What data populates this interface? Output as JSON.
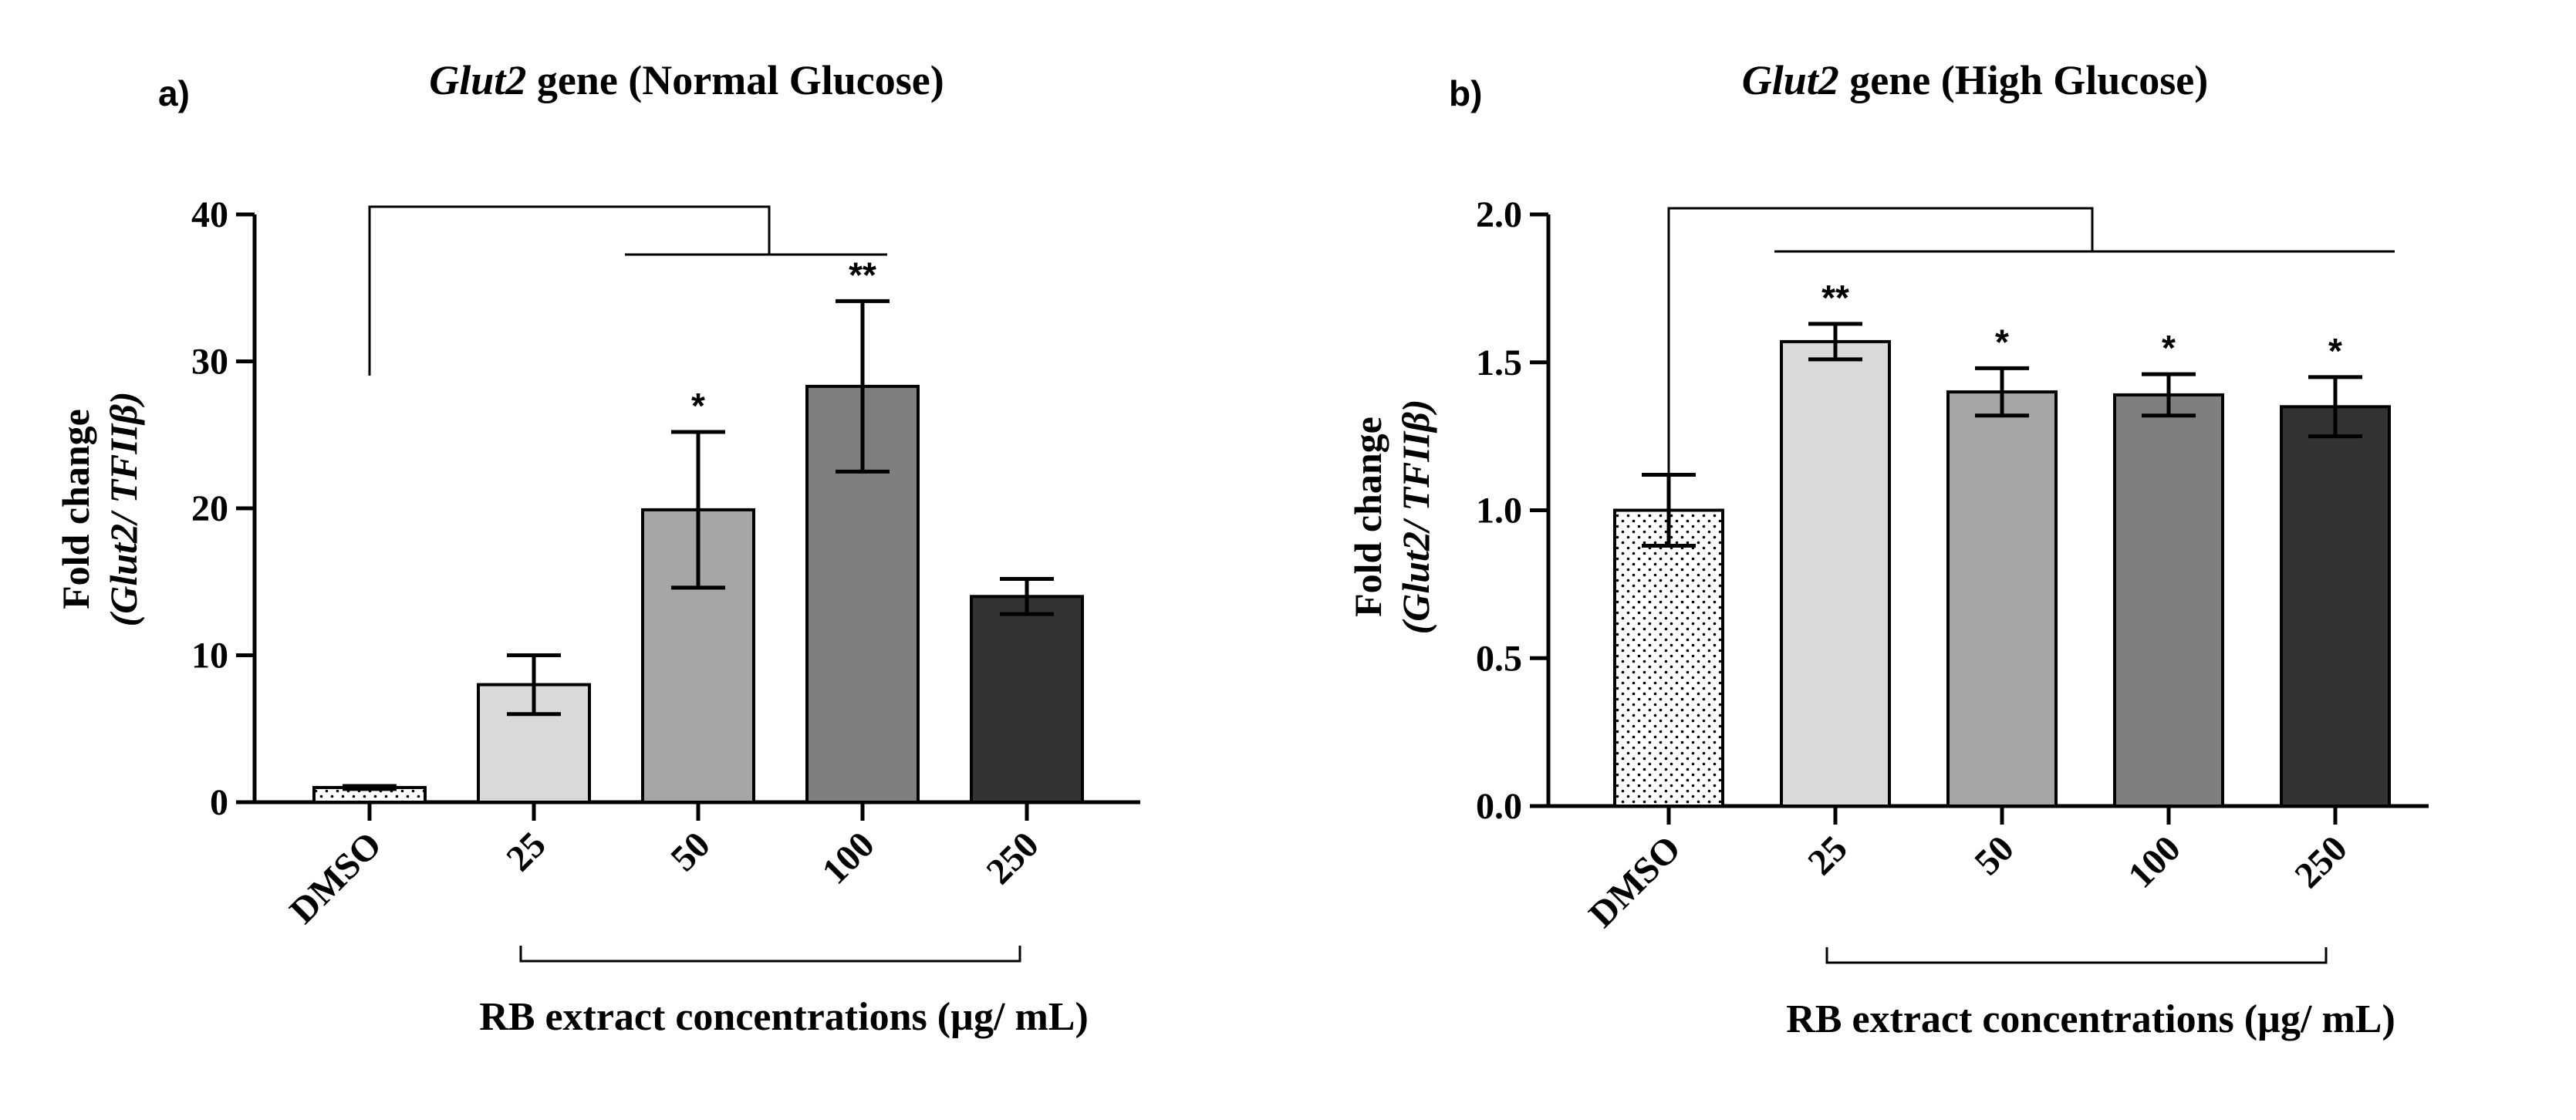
{
  "chart_data": [
    {
      "type": "bar",
      "panel_label": "a)",
      "title_gene": "Glut2",
      "title_rest": " gene (Normal Glucose)",
      "categories": [
        "DMSO",
        "25",
        "50",
        "100",
        "250"
      ],
      "values": [
        1.0,
        8.0,
        19.9,
        28.3,
        14.0
      ],
      "errors": [
        0.1,
        2.0,
        5.3,
        5.8,
        1.2
      ],
      "ylim": [
        0,
        40
      ],
      "yticks": [
        "0",
        "10",
        "20",
        "30",
        "40"
      ],
      "ylabel_line1": "Fold change",
      "ylabel_line2_a": "(Glut2/ ",
      "ylabel_line2_b": "TFIIβ)",
      "xlabel": "RB extract concentrations (µg/ mL)",
      "significance": [
        "",
        "",
        "*",
        "**",
        ""
      ],
      "fills": [
        "pattern",
        "#d9d9d9",
        "#a6a6a8",
        "#7f7f7f",
        "#333333"
      ]
    },
    {
      "type": "bar",
      "panel_label": "b)",
      "title_gene": "Glut2",
      "title_rest": " gene (High Glucose)",
      "categories": [
        "DMSO",
        "25",
        "50",
        "100",
        "250"
      ],
      "values": [
        1.0,
        1.57,
        1.4,
        1.39,
        1.35
      ],
      "errors": [
        0.12,
        0.06,
        0.08,
        0.07,
        0.1
      ],
      "ylim": [
        0,
        2.0
      ],
      "yticks": [
        "0.0",
        "0.5",
        "1.0",
        "1.5",
        "2.0"
      ],
      "ylabel_line1": "Fold change",
      "ylabel_line2_a": "(Glut2/ ",
      "ylabel_line2_b": "TFIIβ)",
      "xlabel": "RB extract concentrations (µg/ mL)",
      "significance": [
        "",
        "**",
        "*",
        "*",
        "*"
      ],
      "fills": [
        "pattern",
        "#d9d9d9",
        "#a6a6a8",
        "#7f7f7f",
        "#333333"
      ]
    }
  ]
}
